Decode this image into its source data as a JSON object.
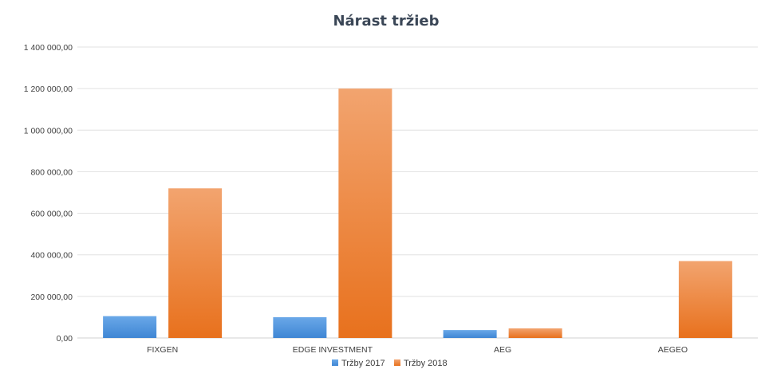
{
  "chart_data": {
    "type": "bar",
    "title": "Nárast tržieb",
    "categories": [
      "FIXGEN",
      "EDGE INVESTMENT",
      "AEG",
      "AEGEO"
    ],
    "series": [
      {
        "name": "Tržby 2017",
        "values": [
          105000,
          100000,
          38000,
          0
        ],
        "color": "#4a90d9"
      },
      {
        "name": "Tržby 2018",
        "values": [
          720000,
          1200000,
          46000,
          370000
        ],
        "color": "#ed7d31"
      }
    ],
    "ylim": [
      0,
      1400000
    ],
    "yticks": [
      0,
      200000,
      400000,
      600000,
      800000,
      1000000,
      1200000,
      1400000
    ],
    "ytick_labels": [
      "0,00",
      "200 000,00",
      "400 000,00",
      "600 000,00",
      "800 000,00",
      "1 000 000,00",
      "1 200 000,00",
      "1 400 000,00"
    ],
    "grid": true,
    "legend_position": "bottom"
  }
}
